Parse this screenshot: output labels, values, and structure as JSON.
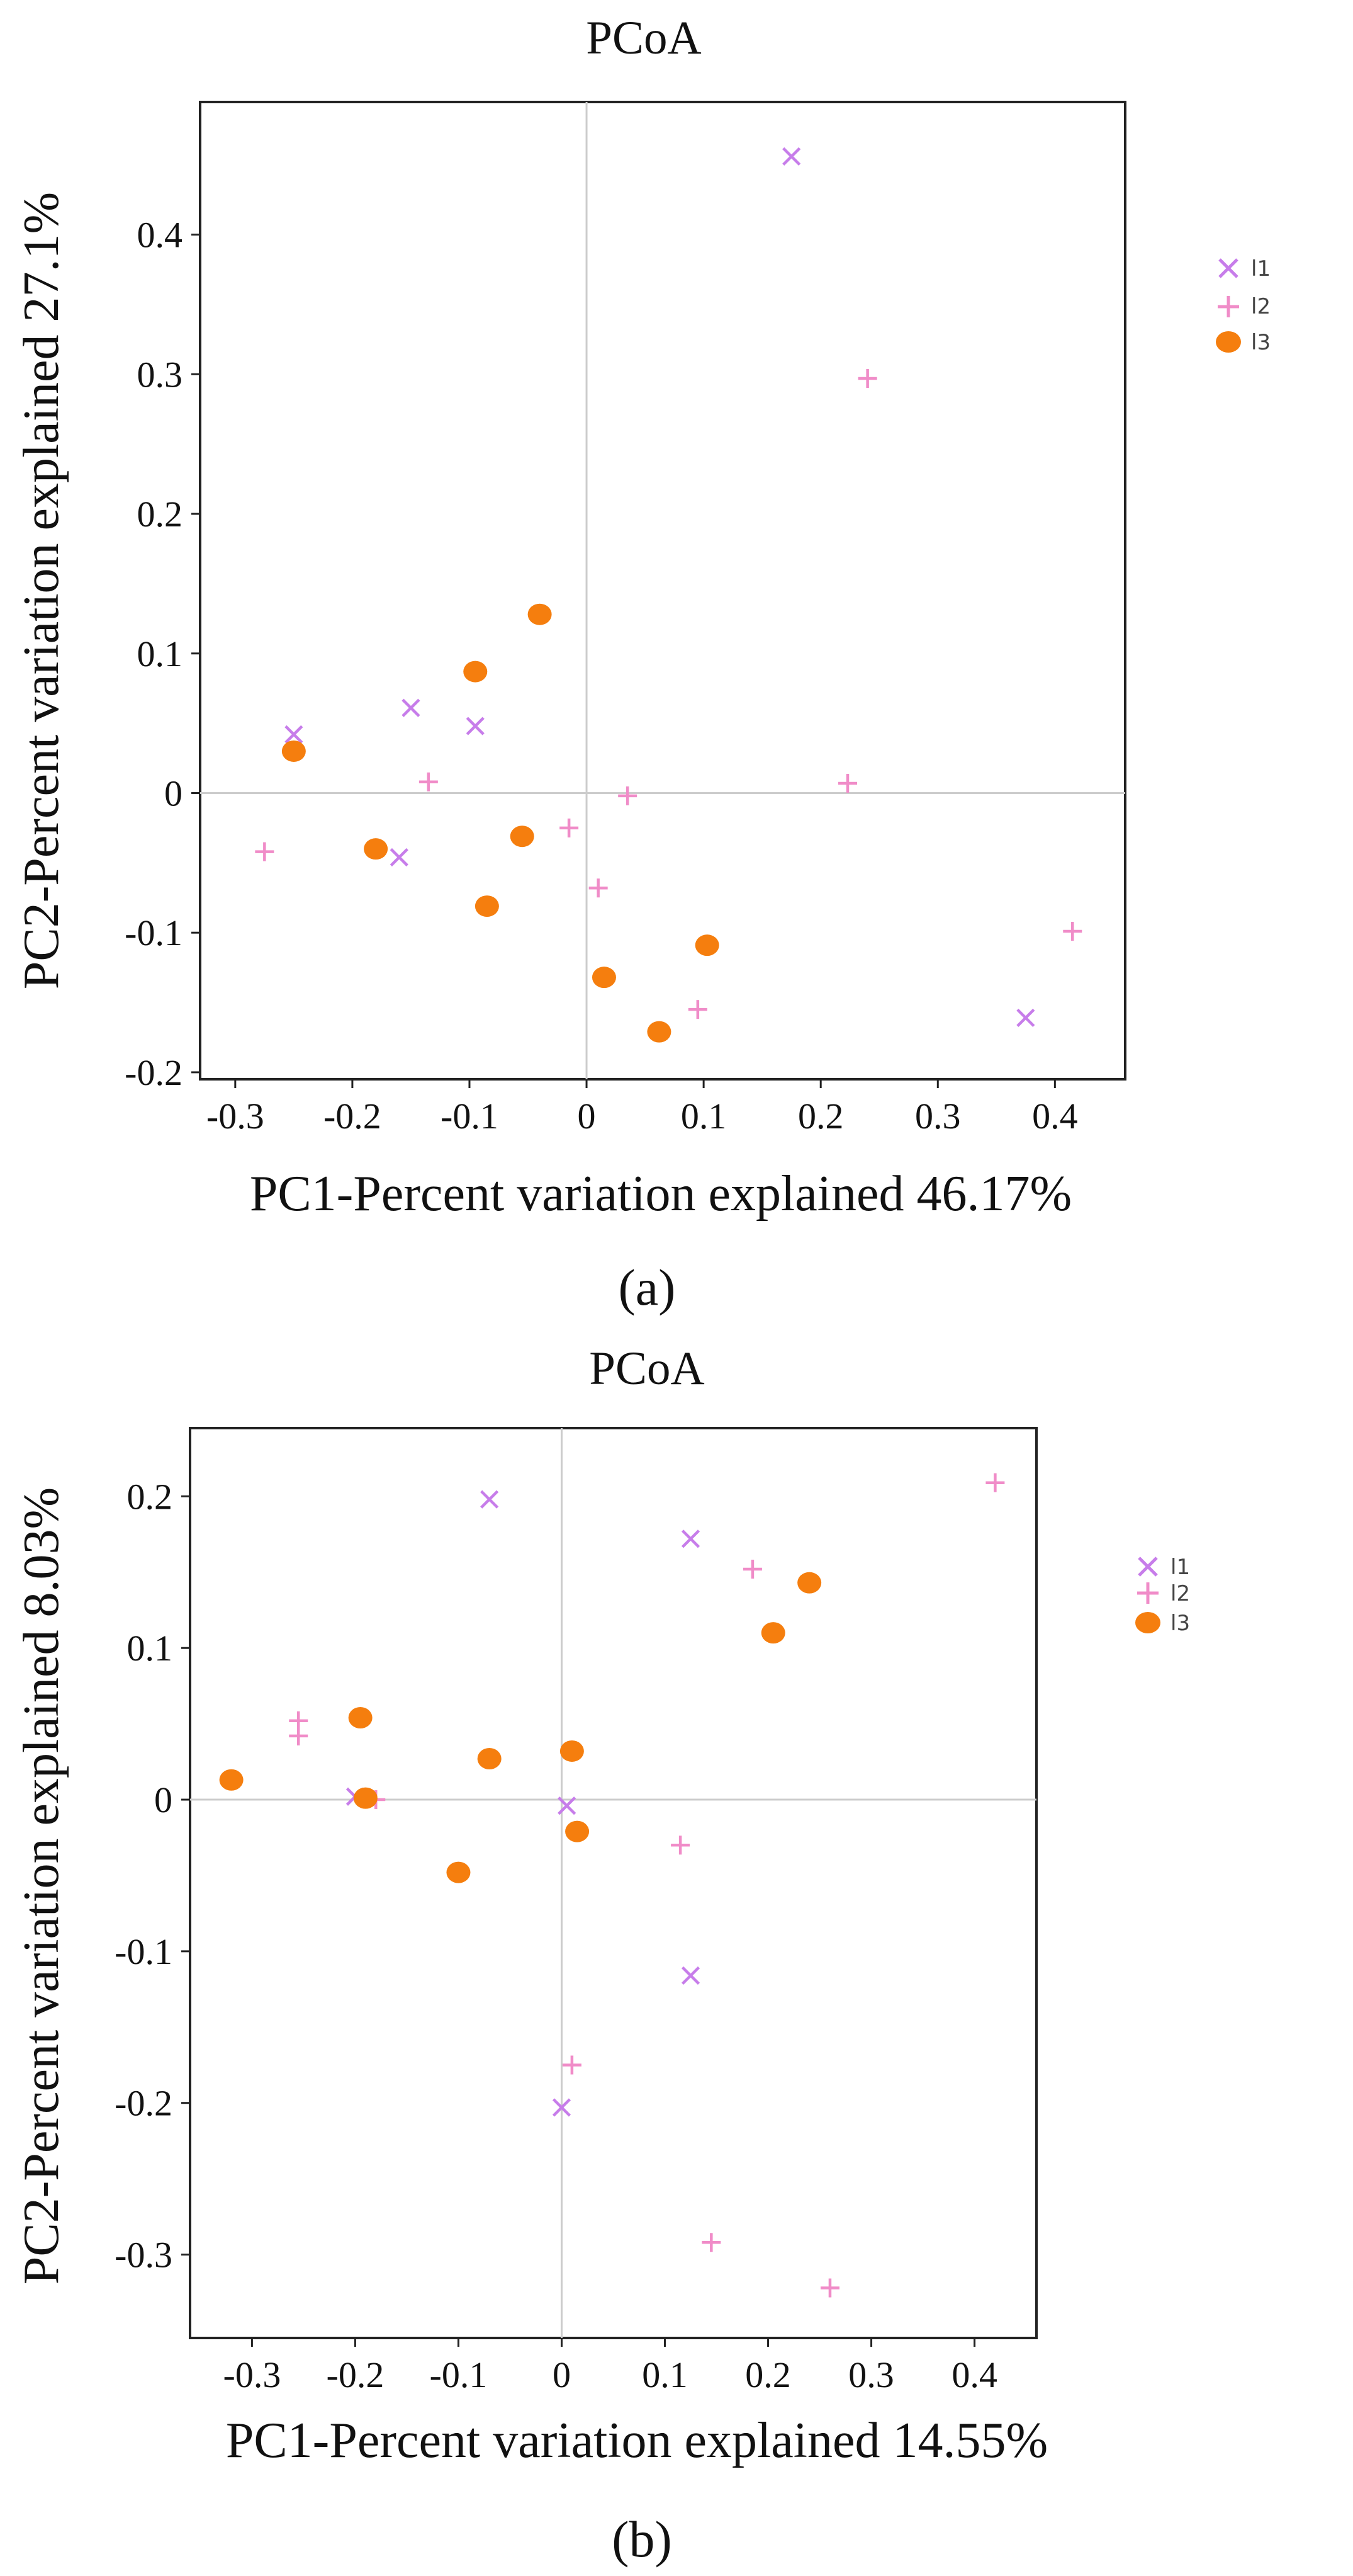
{
  "colors": {
    "l1": "#c77dea",
    "l2": "#f08cc8",
    "l3": "#f57e0e",
    "axis_frame": "#222222",
    "zero_line": "#cccccc"
  },
  "legend_markers": {
    "l1": "x-marker",
    "l2": "plus-marker",
    "l3": "filled-circle-marker"
  },
  "chart_data": [
    {
      "type": "scatter",
      "title": "PCoA",
      "xlabel": "PC1-Percent variation explained 46.17%",
      "ylabel": "PC2-Percent variation explained 27.1%",
      "caption": "(a)",
      "xlim": [
        -0.33,
        0.46
      ],
      "ylim": [
        -0.205,
        0.495
      ],
      "x_ticks": [
        -0.3,
        -0.2,
        -0.1,
        0,
        0.1,
        0.2,
        0.3,
        0.4
      ],
      "x_tick_labels": [
        "-0.3",
        "-0.2",
        "-0.1",
        "0",
        "0.1",
        "0.2",
        "0.3",
        "0.4"
      ],
      "y_ticks": [
        0.4,
        0.3,
        0.2,
        0.1,
        0,
        -0.1,
        -0.2
      ],
      "y_tick_labels": [
        "0.4",
        "0.3",
        "0.2",
        "0.1",
        "0",
        "-0.1",
        "-0.2"
      ],
      "zero_lines": true,
      "legend_position": "upper-right-outside",
      "series": [
        {
          "name": "l1",
          "marker": "x",
          "x": [
            0.175,
            -0.25,
            -0.15,
            -0.095,
            -0.16,
            0.375
          ],
          "y": [
            0.456,
            0.042,
            0.061,
            0.048,
            -0.046,
            -0.161
          ]
        },
        {
          "name": "l2",
          "marker": "+",
          "x": [
            0.24,
            -0.135,
            -0.275,
            -0.015,
            0.035,
            0.223,
            0.01,
            0.415,
            0.095
          ],
          "y": [
            0.297,
            0.008,
            -0.042,
            -0.025,
            -0.002,
            0.007,
            -0.068,
            -0.099,
            -0.155
          ]
        },
        {
          "name": "l3",
          "marker": "circle",
          "x": [
            -0.04,
            -0.095,
            -0.25,
            -0.18,
            -0.055,
            -0.085,
            0.015,
            0.103,
            0.062
          ],
          "y": [
            0.128,
            0.087,
            0.03,
            -0.04,
            -0.031,
            -0.081,
            -0.132,
            -0.109,
            -0.171
          ]
        }
      ]
    },
    {
      "type": "scatter",
      "title": "PCoA",
      "xlabel": "PC1-Percent variation explained 14.55%",
      "ylabel": "PC2-Percent variation explained 8.03%",
      "caption": "(b)",
      "xlim": [
        -0.36,
        0.46
      ],
      "ylim": [
        -0.355,
        0.245
      ],
      "x_ticks": [
        -0.3,
        -0.2,
        -0.1,
        0,
        0.1,
        0.2,
        0.3,
        0.4
      ],
      "x_tick_labels": [
        "-0.3",
        "-0.2",
        "-0.1",
        "0",
        "0.1",
        "0.2",
        "0.3",
        "0.4"
      ],
      "y_ticks": [
        0.2,
        0.1,
        0,
        -0.1,
        -0.2,
        -0.3
      ],
      "y_tick_labels": [
        "0.2",
        "0.1",
        "0",
        "-0.1",
        "-0.2",
        "-0.3"
      ],
      "zero_lines": true,
      "legend_position": "upper-right-outside",
      "series": [
        {
          "name": "l1",
          "marker": "x",
          "x": [
            -0.07,
            0.125,
            -0.2,
            0.005,
            0.125,
            0.0
          ],
          "y": [
            0.198,
            0.172,
            0.002,
            -0.004,
            -0.116,
            -0.203
          ]
        },
        {
          "name": "l2",
          "marker": "+",
          "x": [
            0.42,
            0.185,
            -0.255,
            -0.255,
            -0.18,
            0.115,
            0.01,
            0.145,
            0.26
          ],
          "y": [
            0.209,
            0.152,
            0.052,
            0.042,
            0.0,
            -0.03,
            -0.175,
            -0.292,
            -0.322
          ]
        },
        {
          "name": "l3",
          "marker": "circle",
          "x": [
            0.24,
            0.205,
            -0.195,
            0.01,
            -0.07,
            -0.32,
            -0.19,
            0.015,
            -0.1
          ],
          "y": [
            0.143,
            0.11,
            0.054,
            0.032,
            0.027,
            0.013,
            0.001,
            -0.021,
            -0.048
          ]
        }
      ]
    }
  ]
}
